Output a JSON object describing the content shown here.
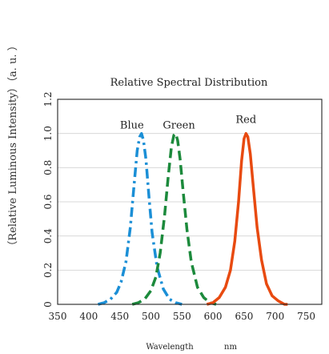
{
  "chart_data": {
    "type": "line",
    "title": "Relative Spectral Distribution",
    "xlabel": "Wavelength",
    "xunit": "nm",
    "ylabel": "（Relative Luminous Intensity）（a. u. ）",
    "xlim": [
      350,
      775
    ],
    "ylim": [
      0,
      1.2
    ],
    "x_ticks": [
      350,
      400,
      450,
      500,
      550,
      600,
      650,
      700,
      750
    ],
    "y_ticks": [
      0,
      0.2,
      0.4,
      0.6,
      0.8,
      1.0,
      1.2
    ],
    "y_tick_labels": [
      "0",
      "0.2",
      "0.4",
      "0.6",
      "0.8",
      "1.0",
      "1.2"
    ],
    "grid": "horizontal",
    "series": [
      {
        "name": "Blue",
        "color": "#1b8fd6",
        "dash": "dash-dot",
        "x": [
          415,
          425,
          435,
          445,
          452,
          460,
          467,
          473,
          478,
          482,
          485,
          488,
          492,
          497,
          502,
          510,
          520,
          530,
          540,
          550
        ],
        "y": [
          0.0,
          0.01,
          0.03,
          0.07,
          0.13,
          0.25,
          0.45,
          0.7,
          0.9,
          0.98,
          1.0,
          0.96,
          0.85,
          0.63,
          0.42,
          0.22,
          0.09,
          0.03,
          0.01,
          0.0
        ]
      },
      {
        "name": "Green",
        "color": "#1c8a3c",
        "dash": "dash",
        "x": [
          470,
          480,
          490,
          500,
          508,
          515,
          522,
          528,
          533,
          537,
          540,
          543,
          547,
          552,
          558,
          565,
          575,
          585,
          595,
          605
        ],
        "y": [
          0.0,
          0.01,
          0.03,
          0.08,
          0.16,
          0.3,
          0.52,
          0.75,
          0.92,
          0.99,
          1.0,
          0.96,
          0.85,
          0.66,
          0.44,
          0.25,
          0.1,
          0.04,
          0.01,
          0.0
        ]
      },
      {
        "name": "Red",
        "color": "#e84a10",
        "dash": "solid",
        "x": [
          590,
          600,
          610,
          620,
          628,
          635,
          641,
          646,
          650,
          653,
          656,
          660,
          665,
          671,
          678,
          686,
          695,
          705,
          715,
          720
        ],
        "y": [
          0.0,
          0.01,
          0.04,
          0.1,
          0.2,
          0.37,
          0.6,
          0.84,
          0.97,
          1.0,
          0.98,
          0.88,
          0.68,
          0.45,
          0.26,
          0.12,
          0.05,
          0.02,
          0.0,
          0.0
        ]
      }
    ]
  }
}
